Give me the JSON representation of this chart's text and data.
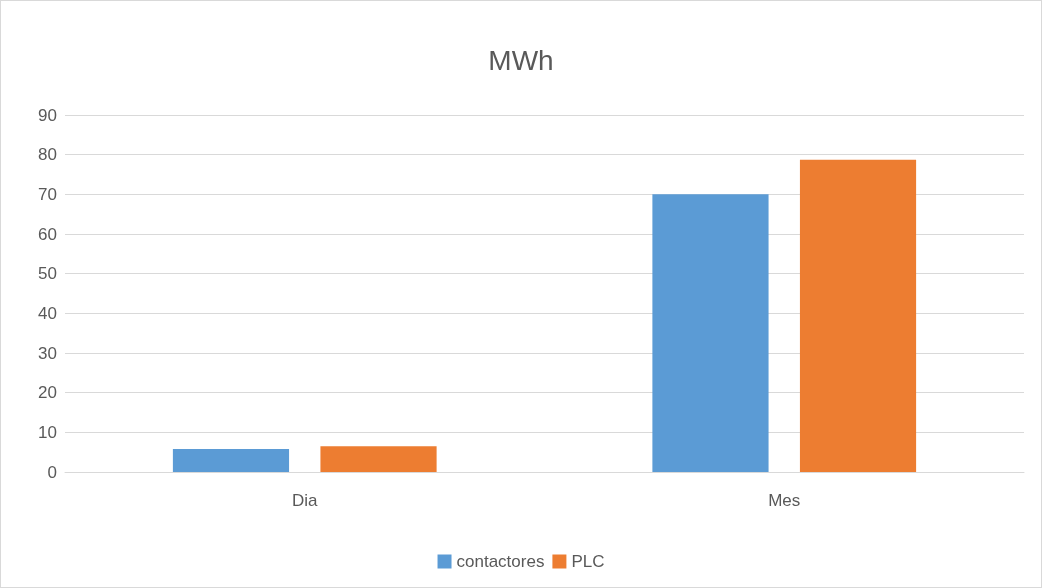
{
  "chart_data": {
    "type": "bar",
    "title": "MWh",
    "categories": [
      "Dia",
      "Mes"
    ],
    "series": [
      {
        "name": "contactores",
        "color": "#5b9bd5",
        "values": [
          5.8,
          70
        ]
      },
      {
        "name": "PLC",
        "color": "#ed7d31",
        "values": [
          6.5,
          78.7
        ]
      }
    ],
    "ylim": [
      0,
      90
    ],
    "yticks": [
      0,
      10,
      20,
      30,
      40,
      50,
      60,
      70,
      80,
      90
    ],
    "grid": "y",
    "legend": "bottom"
  }
}
